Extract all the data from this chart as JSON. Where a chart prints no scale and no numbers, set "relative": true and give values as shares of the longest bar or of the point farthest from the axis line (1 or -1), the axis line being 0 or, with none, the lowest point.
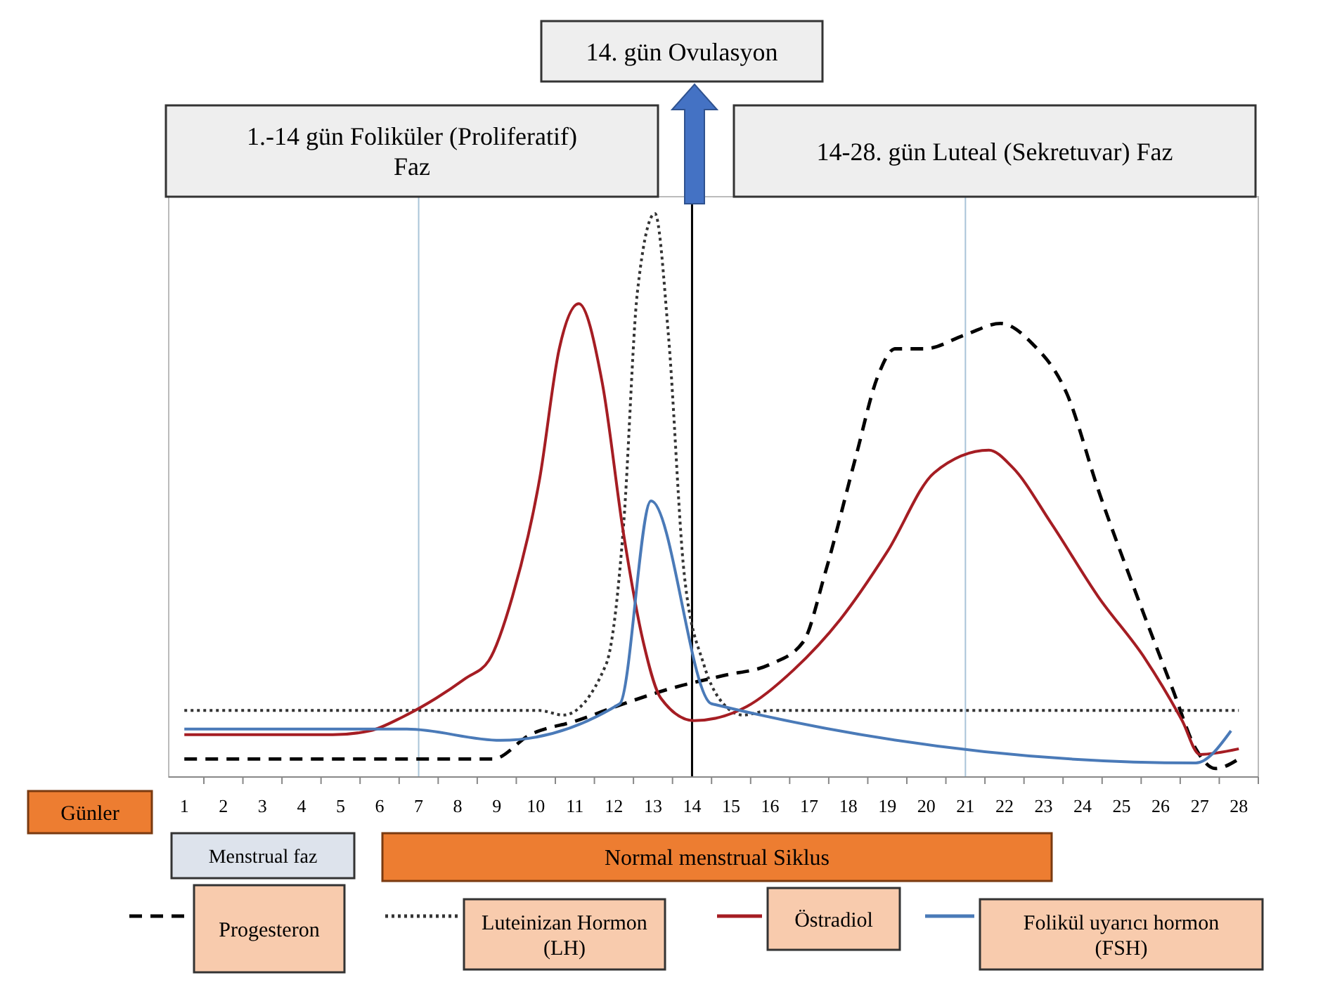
{
  "chart_data": {
    "type": "line",
    "relative": true,
    "xlabel": "Günler",
    "xlim": [
      0.6,
      28.5
    ],
    "xticks": [
      1,
      2,
      3,
      4,
      5,
      6,
      7,
      8,
      9,
      10,
      11,
      12,
      13,
      14,
      15,
      16,
      17,
      18,
      19,
      20,
      21,
      22,
      23,
      24,
      25,
      26,
      27,
      28
    ],
    "legend": "bottom",
    "marker": "none",
    "grid": false,
    "annotations": [
      "14. gün Ovulasyon",
      "1.-14 gün Foliküler (Proliferatif) Faz",
      "14-28. gün Luteal (Sekretuvar) Faz",
      "Menstrual faz",
      "Normal menstrual Siklus"
    ],
    "ref_lines": [
      {
        "axis": "x",
        "value": 7,
        "color": "#a9c4d8"
      },
      {
        "axis": "x",
        "value": 21,
        "color": "#a9c4d8"
      },
      {
        "axis": "x",
        "value": 14,
        "color": "#000000"
      }
    ],
    "series": [
      {
        "name": "Progesteron",
        "color": "#000000",
        "line_style": "dashed",
        "x": [
          1,
          8.9,
          9.85,
          11.05,
          12.25,
          13.45,
          14.8,
          16,
          16.85,
          17.4,
          18.2,
          18.75,
          19.2,
          19.95,
          21,
          21.9,
          22.7,
          23.6,
          24.4,
          25.4,
          26.3,
          26.9,
          27.4,
          28
        ],
        "values": [
          0.032,
          0.032,
          0.075,
          0.1,
          0.13,
          0.157,
          0.18,
          0.2,
          0.24,
          0.36,
          0.57,
          0.71,
          0.76,
          0.76,
          0.785,
          0.805,
          0.77,
          0.68,
          0.51,
          0.32,
          0.157,
          0.05,
          0.015,
          0.032
        ]
      },
      {
        "name": "Luteinizan Hormon (LH)",
        "color": "#333333",
        "line_style": "dotted",
        "x": [
          1,
          10.1,
          10.7,
          11.8,
          12.25,
          12.6,
          13.05,
          13.4,
          13.8,
          14.3,
          14.8,
          15.3,
          16,
          28
        ],
        "values": [
          0.118,
          0.118,
          0.11,
          0.2,
          0.45,
          0.86,
          1,
          0.78,
          0.36,
          0.2,
          0.13,
          0.11,
          0.118,
          0.118
        ]
      },
      {
        "name": "Östradiol",
        "color": "#a51d23",
        "line_style": "solid",
        "x": [
          1,
          4.8,
          5.75,
          6.6,
          7.45,
          8.2,
          8.8,
          9.4,
          10.1,
          10.6,
          11.1,
          11.7,
          12.25,
          12.75,
          13.2,
          14.05,
          15.4,
          16.6,
          17.8,
          19,
          20.2,
          21.6,
          22.2,
          23.2,
          24.4,
          25.6,
          26.55,
          27,
          28
        ],
        "values": [
          0.075,
          0.075,
          0.082,
          0.107,
          0.14,
          0.175,
          0.207,
          0.32,
          0.53,
          0.76,
          0.84,
          0.7,
          0.43,
          0.24,
          0.14,
          0.1,
          0.125,
          0.19,
          0.28,
          0.4,
          0.54,
          0.58,
          0.55,
          0.45,
          0.32,
          0.21,
          0.1,
          0.04,
          0.05
        ]
      },
      {
        "name": "Folikül uyarıcı hormon (FSH)",
        "color": "#4a7ab8",
        "line_style": "solid",
        "x": [
          1,
          6.7,
          9.1,
          12.15,
          12.95,
          14.5,
          26.9,
          27.8
        ],
        "values": [
          0.085,
          0.085,
          0.065,
          0.13,
          0.49,
          0.13,
          0.025,
          0.082
        ]
      }
    ]
  }
}
